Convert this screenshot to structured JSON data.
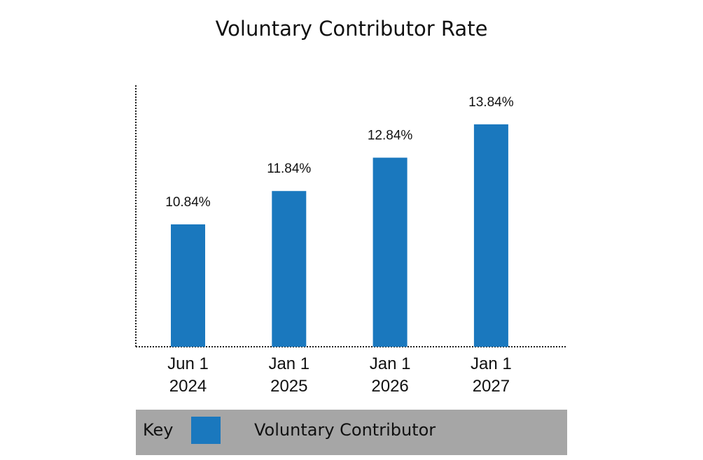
{
  "chart_data": {
    "type": "bar",
    "title": "Voluntary Contributor Rate",
    "categories": [
      [
        "Jun 1",
        "2024"
      ],
      [
        "Jan 1",
        "2025"
      ],
      [
        "Jan 1",
        "2026"
      ],
      [
        "Jan 1",
        "2027"
      ]
    ],
    "values": [
      10.84,
      11.84,
      12.84,
      13.84
    ],
    "data_labels": [
      "10.84%",
      "11.84%",
      "12.84%",
      "13.84%"
    ],
    "xlabel": "",
    "ylabel": "",
    "grid": false,
    "series_color": "#1a78be",
    "legend": {
      "title": "Key",
      "entries": [
        "Voluntary Contributor"
      ],
      "placement": "bottom"
    }
  }
}
